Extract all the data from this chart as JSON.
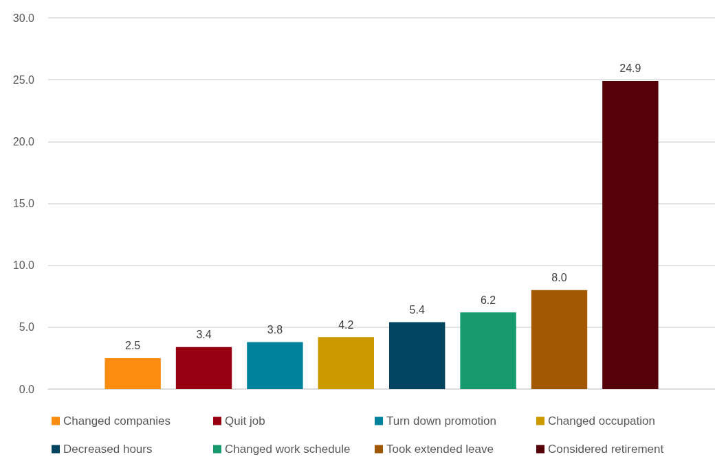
{
  "chart_data": {
    "type": "bar",
    "categories": [
      null
    ],
    "series": [
      {
        "name": "Changed companies",
        "color": "#fb8c10",
        "values": [
          2.5
        ],
        "value_labels": [
          "2.5"
        ]
      },
      {
        "name": "Quit job",
        "color": "#970010",
        "values": [
          3.4
        ],
        "value_labels": [
          "3.4"
        ]
      },
      {
        "name": "Turn down promotion",
        "color": "#00829c",
        "values": [
          3.8
        ],
        "value_labels": [
          "3.8"
        ]
      },
      {
        "name": "Changed occupation",
        "color": "#cc9900",
        "values": [
          4.2
        ],
        "value_labels": [
          "4.2"
        ]
      },
      {
        "name": "Decreased hours",
        "color": "#00445f",
        "values": [
          5.4
        ],
        "value_labels": [
          "5.4"
        ]
      },
      {
        "name": "Changed work schedule",
        "color": "#179b6e",
        "values": [
          6.2
        ],
        "value_labels": [
          "6.2"
        ]
      },
      {
        "name": "Took extended leave",
        "color": "#a15800",
        "values": [
          8.0
        ],
        "value_labels": [
          "8.0"
        ]
      },
      {
        "name": "Considered retirement",
        "color": "#560008",
        "values": [
          24.9
        ],
        "value_labels": [
          "24.9"
        ]
      }
    ],
    "ylim": [
      0,
      30
    ],
    "yticks": [
      {
        "value": 0,
        "label": "0.0"
      },
      {
        "value": 5,
        "label": "5.0"
      },
      {
        "value": 10,
        "label": "10.0"
      },
      {
        "value": 15,
        "label": "15.0"
      },
      {
        "value": 20,
        "label": "20.0"
      },
      {
        "value": 25,
        "label": "25.0"
      },
      {
        "value": 30,
        "label": "30.0"
      }
    ],
    "grid": "y",
    "legend": "bottom"
  }
}
